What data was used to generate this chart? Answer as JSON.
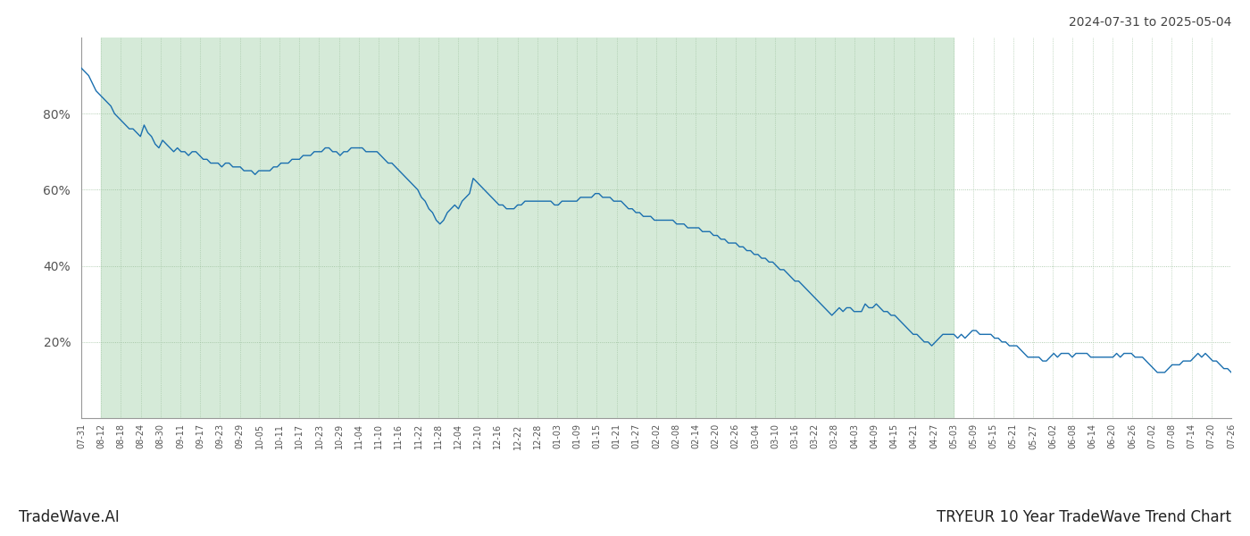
{
  "title_right": "2024-07-31 to 2025-05-04",
  "bottom_left": "TradeWave.AI",
  "bottom_right": "TRYEUR 10 Year TradeWave Trend Chart",
  "line_color": "#1a6faf",
  "fill_color": "#d5ead8",
  "bg_color": "#ffffff",
  "grid_color": "#9bbf9b",
  "yticks": [
    20,
    40,
    60,
    80
  ],
  "ylim": [
    0,
    100
  ],
  "xtick_labels": [
    "07-31",
    "08-12",
    "08-18",
    "08-24",
    "08-30",
    "09-11",
    "09-17",
    "09-23",
    "09-29",
    "10-05",
    "10-11",
    "10-17",
    "10-23",
    "10-29",
    "11-04",
    "11-10",
    "11-16",
    "11-22",
    "11-28",
    "12-04",
    "12-10",
    "12-16",
    "12-22",
    "12-28",
    "01-03",
    "01-09",
    "01-15",
    "01-21",
    "01-27",
    "02-02",
    "02-08",
    "02-14",
    "02-20",
    "02-26",
    "03-04",
    "03-10",
    "03-16",
    "03-22",
    "03-28",
    "04-03",
    "04-09",
    "04-15",
    "04-21",
    "04-27",
    "05-03",
    "05-09",
    "05-15",
    "05-21",
    "05-27",
    "06-02",
    "06-08",
    "06-14",
    "06-20",
    "06-26",
    "07-02",
    "07-08",
    "07-14",
    "07-20",
    "07-26"
  ],
  "highlight_start_label": "08-12",
  "highlight_end_label": "05-03",
  "y_values": [
    92,
    91,
    90,
    88,
    86,
    85,
    84,
    83,
    82,
    80,
    79,
    78,
    77,
    76,
    76,
    75,
    74,
    77,
    75,
    74,
    72,
    71,
    73,
    72,
    71,
    70,
    71,
    70,
    70,
    69,
    70,
    70,
    69,
    68,
    68,
    67,
    67,
    67,
    66,
    67,
    67,
    66,
    66,
    66,
    65,
    65,
    65,
    64,
    65,
    65,
    65,
    65,
    66,
    66,
    67,
    67,
    67,
    68,
    68,
    68,
    69,
    69,
    69,
    70,
    70,
    70,
    71,
    71,
    70,
    70,
    69,
    70,
    70,
    71,
    71,
    71,
    71,
    70,
    70,
    70,
    70,
    69,
    68,
    67,
    67,
    66,
    65,
    64,
    63,
    62,
    61,
    60,
    58,
    57,
    55,
    54,
    52,
    51,
    52,
    54,
    55,
    56,
    55,
    57,
    58,
    59,
    63,
    62,
    61,
    60,
    59,
    58,
    57,
    56,
    56,
    55,
    55,
    55,
    56,
    56,
    57,
    57,
    57,
    57,
    57,
    57,
    57,
    57,
    56,
    56,
    57,
    57,
    57,
    57,
    57,
    58,
    58,
    58,
    58,
    59,
    59,
    58,
    58,
    58,
    57,
    57,
    57,
    56,
    55,
    55,
    54,
    54,
    53,
    53,
    53,
    52,
    52,
    52,
    52,
    52,
    52,
    51,
    51,
    51,
    50,
    50,
    50,
    50,
    49,
    49,
    49,
    48,
    48,
    47,
    47,
    46,
    46,
    46,
    45,
    45,
    44,
    44,
    43,
    43,
    42,
    42,
    41,
    41,
    40,
    39,
    39,
    38,
    37,
    36,
    36,
    35,
    34,
    33,
    32,
    31,
    30,
    29,
    28,
    27,
    28,
    29,
    28,
    29,
    29,
    28,
    28,
    28,
    30,
    29,
    29,
    30,
    29,
    28,
    28,
    27,
    27,
    26,
    25,
    24,
    23,
    22,
    22,
    21,
    20,
    20,
    19,
    20,
    21,
    22,
    22,
    22,
    22,
    21,
    22,
    21,
    22,
    23,
    23,
    22,
    22,
    22,
    22,
    21,
    21,
    20,
    20,
    19,
    19,
    19,
    18,
    17,
    16,
    16,
    16,
    16,
    15,
    15,
    16,
    17,
    16,
    17,
    17,
    17,
    16,
    17,
    17,
    17,
    17,
    16,
    16,
    16,
    16,
    16,
    16,
    16,
    17,
    16,
    17,
    17,
    17,
    16,
    16,
    16,
    15,
    14,
    13,
    12,
    12,
    12,
    13,
    14,
    14,
    14,
    15,
    15,
    15,
    16,
    17,
    16,
    17,
    16,
    15,
    15,
    14,
    13,
    13,
    12
  ]
}
